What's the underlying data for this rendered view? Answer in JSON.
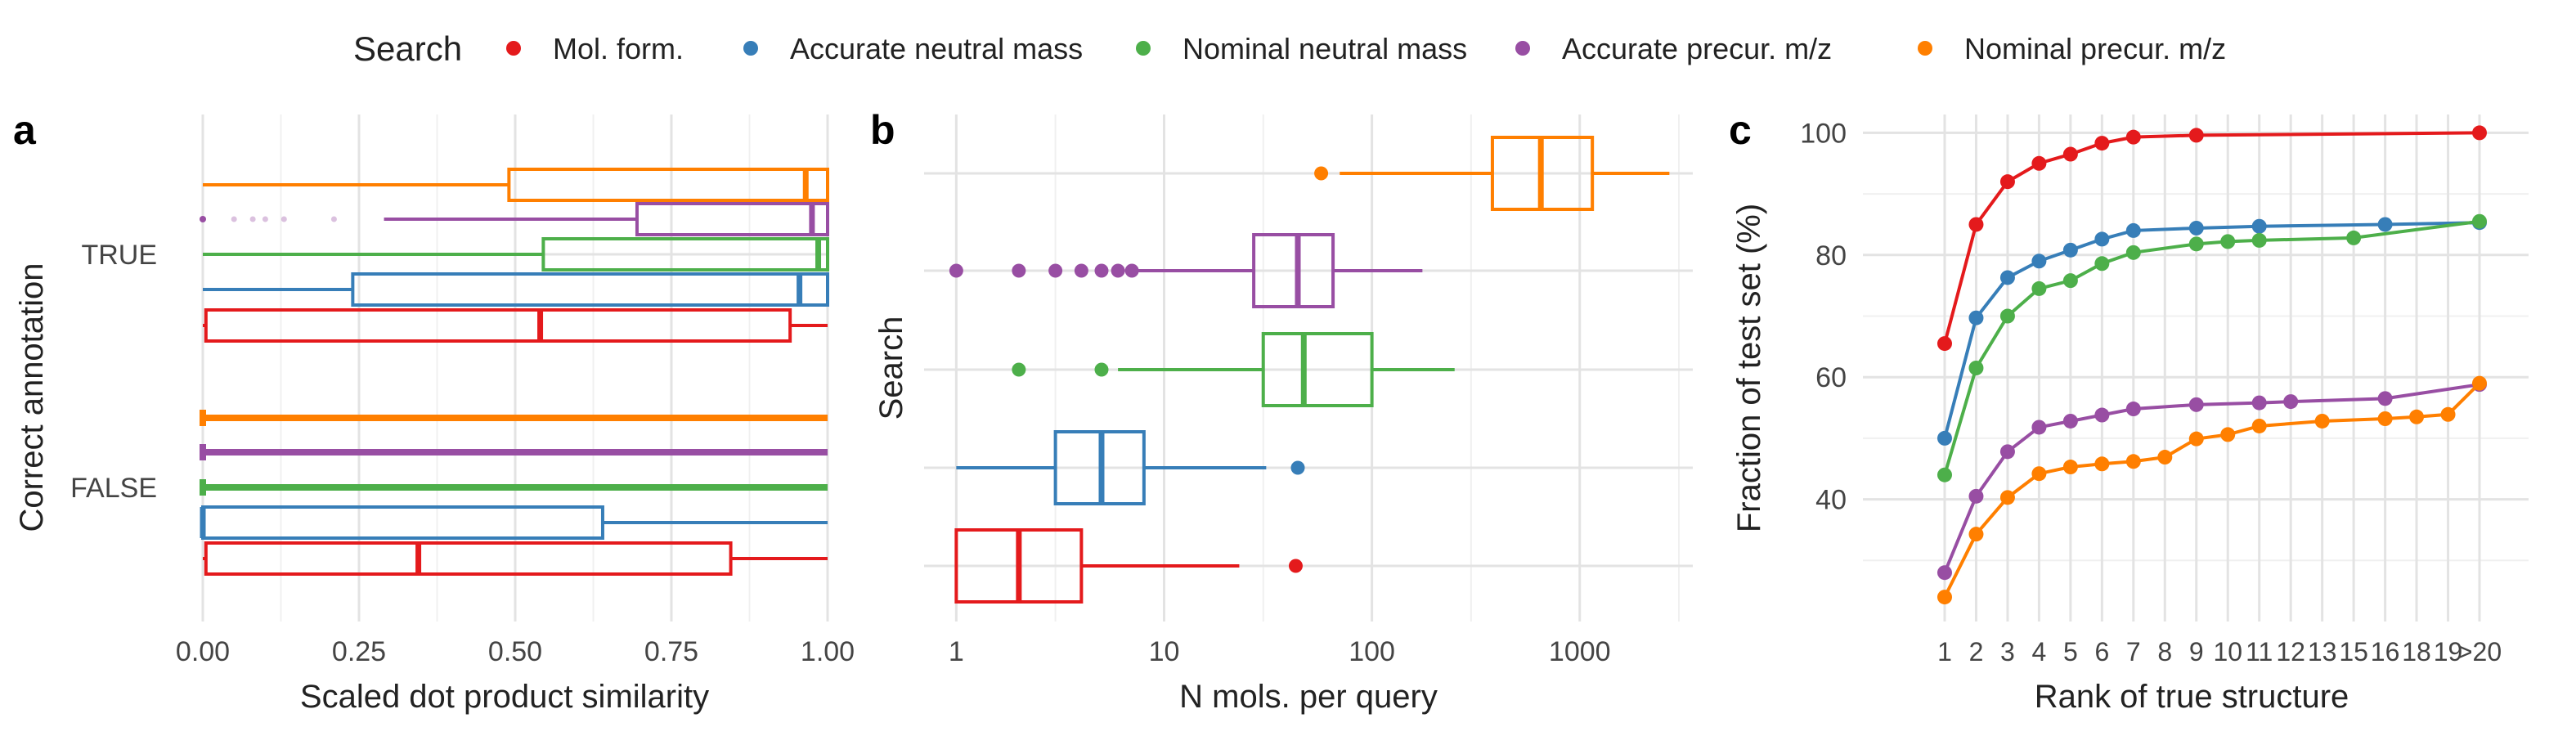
{
  "colors": {
    "mol_form": "#e41a1c",
    "acc_neutral": "#377eb8",
    "nom_neutral": "#4daf4a",
    "acc_precur": "#984ea3",
    "nom_precur": "#ff7f00"
  },
  "legend": {
    "title": "Search",
    "items": [
      {
        "key": "mol_form",
        "label": "Mol. form."
      },
      {
        "key": "acc_neutral",
        "label": "Accurate neutral mass"
      },
      {
        "key": "nom_neutral",
        "label": "Nominal neutral mass"
      },
      {
        "key": "acc_precur",
        "label": "Accurate precur. m/z"
      },
      {
        "key": "nom_precur",
        "label": "Nominal precur. m/z"
      }
    ]
  },
  "chart_data": [
    {
      "panel_label": "a",
      "type": "boxplot",
      "orientation": "horizontal",
      "xlabel": "Scaled dot product similarity",
      "ylabel": "Correct annotation",
      "xlim": [
        0,
        1
      ],
      "xticks": [
        "0.00",
        "0.25",
        "0.50",
        "0.75",
        "1.00"
      ],
      "categories": [
        "TRUE",
        "FALSE"
      ],
      "groups": [
        {
          "category": "TRUE",
          "key": "nom_precur",
          "whisker_low": 0.0,
          "q1": 0.49,
          "median": 0.965,
          "q3": 1.0,
          "whisker_high": 1.0,
          "outliers": []
        },
        {
          "category": "TRUE",
          "key": "acc_precur",
          "whisker_low": 0.29,
          "q1": 0.695,
          "median": 0.975,
          "q3": 1.0,
          "whisker_high": 1.0,
          "outliers": [
            0.0,
            0.05,
            0.08,
            0.1,
            0.13,
            0.21
          ]
        },
        {
          "category": "TRUE",
          "key": "nom_neutral",
          "whisker_low": 0.0,
          "q1": 0.545,
          "median": 0.985,
          "q3": 1.0,
          "whisker_high": 1.0,
          "outliers": []
        },
        {
          "category": "TRUE",
          "key": "acc_neutral",
          "whisker_low": 0.0,
          "q1": 0.24,
          "median": 0.955,
          "q3": 1.0,
          "whisker_high": 1.0,
          "outliers": []
        },
        {
          "category": "TRUE",
          "key": "mol_form",
          "whisker_low": 0.0,
          "q1": 0.005,
          "median": 0.54,
          "q3": 0.94,
          "whisker_high": 1.0,
          "outliers": []
        },
        {
          "category": "FALSE",
          "key": "nom_precur",
          "whisker_low": 0.0,
          "q1": 0.0,
          "median": 0.0,
          "q3": 0.0,
          "whisker_high": 0.0,
          "outliers_span": [
            0.0,
            1.0
          ]
        },
        {
          "category": "FALSE",
          "key": "acc_precur",
          "whisker_low": 0.0,
          "q1": 0.0,
          "median": 0.0,
          "q3": 0.0,
          "whisker_high": 0.0,
          "outliers_span": [
            0.0,
            1.0
          ]
        },
        {
          "category": "FALSE",
          "key": "nom_neutral",
          "whisker_low": 0.0,
          "q1": 0.0,
          "median": 0.0,
          "q3": 0.0,
          "whisker_high": 0.0,
          "outliers_span": [
            0.0,
            1.0
          ]
        },
        {
          "category": "FALSE",
          "key": "acc_neutral",
          "whisker_low": 0.0,
          "q1": 0.0,
          "median": 0.0,
          "q3": 0.64,
          "whisker_high": 1.0,
          "outliers": []
        },
        {
          "category": "FALSE",
          "key": "mol_form",
          "whisker_low": 0.0,
          "q1": 0.005,
          "median": 0.345,
          "q3": 0.845,
          "whisker_high": 1.0,
          "outliers": []
        }
      ]
    },
    {
      "panel_label": "b",
      "type": "boxplot",
      "orientation": "horizontal",
      "xscale": "log10",
      "xlabel": "N mols. per query",
      "ylabel": "Search",
      "xlim": [
        0.7,
        3500
      ],
      "xticks": [
        "1",
        "10",
        "100",
        "1000"
      ],
      "groups": [
        {
          "key": "nom_precur",
          "whisker_low": 70,
          "q1": 380,
          "median": 650,
          "q3": 1150,
          "whisker_high": 2700,
          "outliers": [
            57
          ]
        },
        {
          "key": "acc_precur",
          "whisker_low": 7.5,
          "q1": 27,
          "median": 44,
          "q3": 65,
          "whisker_high": 175,
          "outliers": [
            1,
            2,
            3,
            4,
            5,
            6,
            7
          ]
        },
        {
          "key": "nom_neutral",
          "whisker_low": 6,
          "q1": 30,
          "median": 47,
          "q3": 100,
          "whisker_high": 250,
          "outliers": [
            2,
            5
          ]
        },
        {
          "key": "acc_neutral",
          "whisker_low": 1,
          "q1": 3,
          "median": 5,
          "q3": 8,
          "whisker_high": 31,
          "outliers": [
            44
          ]
        },
        {
          "key": "mol_form",
          "whisker_low": 1,
          "q1": 1,
          "median": 2,
          "q3": 4,
          "whisker_high": 23,
          "outliers": [
            43
          ]
        }
      ]
    },
    {
      "panel_label": "c",
      "type": "line",
      "xlabel": "Rank of true structure",
      "ylabel": "Fraction of test set (%)",
      "x": [
        "1",
        "2",
        "3",
        "4",
        "5",
        "6",
        "7",
        "8",
        "9",
        "10",
        "11",
        "12",
        "13",
        "15",
        "16",
        "18",
        "19",
        ">20"
      ],
      "ylim": [
        20,
        103
      ],
      "yticks": [
        "40",
        "60",
        "80",
        "100"
      ],
      "series": [
        {
          "key": "mol_form",
          "points": [
            [
              "1",
              65.5
            ],
            [
              "2",
              85
            ],
            [
              "3",
              92
            ],
            [
              "4",
              95
            ],
            [
              "5",
              96.5
            ],
            [
              "6",
              98.3
            ],
            [
              "7",
              99.3
            ],
            [
              "9",
              99.6
            ],
            [
              ">20",
              100
            ]
          ]
        },
        {
          "key": "acc_neutral",
          "points": [
            [
              "1",
              50
            ],
            [
              "2",
              69.7
            ],
            [
              "3",
              76.3
            ],
            [
              "4",
              79
            ],
            [
              "5",
              80.8
            ],
            [
              "6",
              82.6
            ],
            [
              "7",
              84
            ],
            [
              "9",
              84.4
            ],
            [
              "11",
              84.7
            ],
            [
              "16",
              85
            ],
            [
              ">20",
              85.3
            ]
          ]
        },
        {
          "key": "nom_neutral",
          "points": [
            [
              "1",
              44
            ],
            [
              "2",
              61.5
            ],
            [
              "3",
              70
            ],
            [
              "4",
              74.5
            ],
            [
              "5",
              75.8
            ],
            [
              "6",
              78.6
            ],
            [
              "7",
              80.4
            ],
            [
              "9",
              81.8
            ],
            [
              "10",
              82.2
            ],
            [
              "11",
              82.4
            ],
            [
              "15",
              82.8
            ],
            [
              ">20",
              85.5
            ]
          ]
        },
        {
          "key": "acc_precur",
          "points": [
            [
              "1",
              28
            ],
            [
              "2",
              40.5
            ],
            [
              "3",
              47.8
            ],
            [
              "4",
              51.8
            ],
            [
              "5",
              52.8
            ],
            [
              "6",
              53.8
            ],
            [
              "7",
              54.8
            ],
            [
              "9",
              55.5
            ],
            [
              "11",
              55.8
            ],
            [
              "12",
              56
            ],
            [
              "16",
              56.5
            ],
            [
              ">20",
              58.8
            ]
          ]
        },
        {
          "key": "nom_precur",
          "points": [
            [
              "1",
              24
            ],
            [
              "2",
              34.3
            ],
            [
              "3",
              40.3
            ],
            [
              "4",
              44.2
            ],
            [
              "5",
              45.3
            ],
            [
              "6",
              45.8
            ],
            [
              "7",
              46.2
            ],
            [
              "8",
              46.9
            ],
            [
              "9",
              49.9
            ],
            [
              "10",
              50.6
            ],
            [
              "11",
              52
            ],
            [
              "13",
              52.8
            ],
            [
              "16",
              53.2
            ],
            [
              "18",
              53.5
            ],
            [
              "19",
              53.9
            ],
            [
              ">20",
              59
            ]
          ]
        }
      ]
    }
  ]
}
